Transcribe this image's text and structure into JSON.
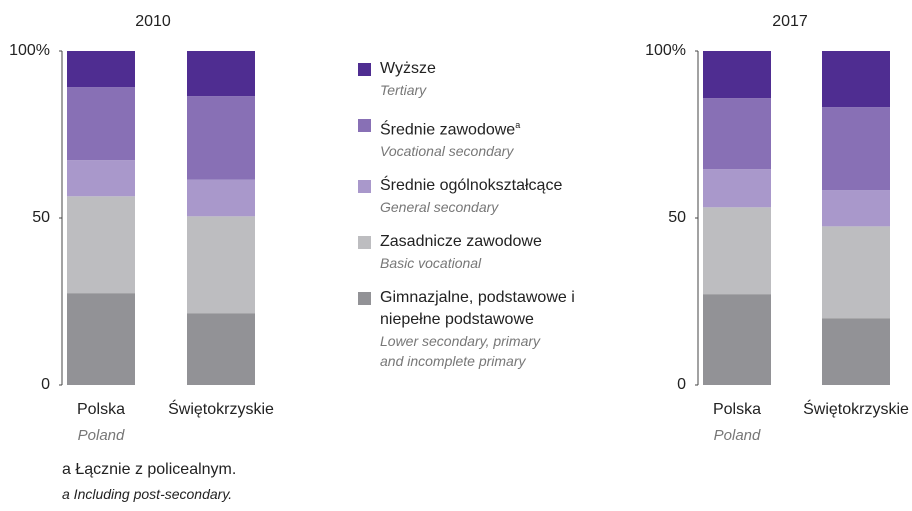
{
  "chart_data": [
    {
      "type": "stacked_bar",
      "title": "2010",
      "categories": [
        "Polska",
        "Świętokrzyskie"
      ],
      "category_translations": [
        "Poland",
        null
      ],
      "ylim": [
        0,
        100
      ],
      "yticks": [
        0,
        50,
        {
          "value": 100,
          "label": "100%"
        }
      ],
      "series": [
        {
          "name": "Wyższe",
          "name_en": "Tertiary",
          "color": "#4f2d91",
          "values": [
            10.8,
            13.5
          ]
        },
        {
          "name": "Średnie zawodowe",
          "note_marker": "a",
          "name_en": "Vocational secondary",
          "color": "#8870b5",
          "values": [
            21.9,
            25
          ]
        },
        {
          "name": "Średnie ogólnokształcące",
          "name_en": "General secondary",
          "color": "#a998cb",
          "values": [
            10.8,
            11
          ]
        },
        {
          "name": "Zasadnicze zawodowe",
          "name_en": "Basic vocational",
          "color": "#bdbdc0",
          "values": [
            29,
            29
          ]
        },
        {
          "name": "Gimnazjalne, podstawowe i niepełne podstawowe",
          "name_en": "Lower secondary, primary and incomplete primary",
          "color": "#929296",
          "values": [
            27.5,
            21.5
          ]
        }
      ]
    },
    {
      "type": "stacked_bar",
      "title": "2017",
      "categories": [
        "Polska",
        "Świętokrzyskie"
      ],
      "category_translations": [
        "Poland",
        null
      ],
      "ylim": [
        0,
        100
      ],
      "yticks": [
        0,
        50,
        {
          "value": 100,
          "label": "100%"
        }
      ],
      "series": [
        {
          "color": "#4f2d91",
          "values": [
            14.1,
            16.8
          ]
        },
        {
          "color": "#8870b5",
          "values": [
            21.3,
            24.9
          ]
        },
        {
          "color": "#a998cb",
          "values": [
            11.4,
            10.8
          ]
        },
        {
          "color": "#bdbdc0",
          "values": [
            26,
            27.5
          ]
        },
        {
          "color": "#929296",
          "values": [
            27.2,
            20
          ]
        }
      ]
    }
  ],
  "footnote": [
    "a Łącznie z policealnym.",
    "a Including post-secondary."
  ]
}
